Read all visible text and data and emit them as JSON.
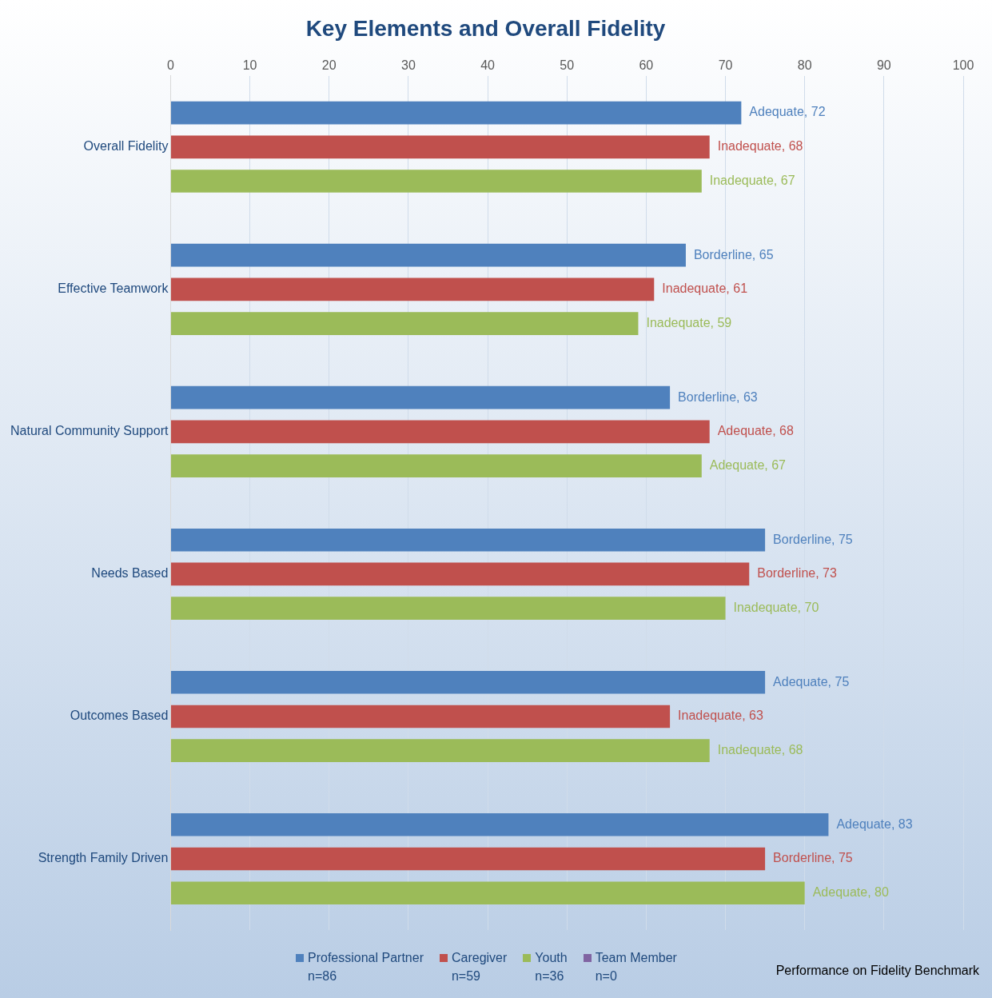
{
  "chart_data": {
    "type": "bar",
    "orientation": "horizontal",
    "title": "Key Elements and Overall Fidelity",
    "categories": [
      "Overall Fidelity",
      "Effective Teamwork",
      "Natural Community Support",
      "Needs Based",
      "Outcomes Based",
      "Strength Family Driven"
    ],
    "series": [
      {
        "name": "Professional Partner\nn=86",
        "color": "#4f81bd",
        "values": [
          72,
          65,
          63,
          75,
          75,
          83
        ],
        "value_labels": [
          "Adequate, 72",
          "Borderline, 65",
          "Borderline, 63",
          "Borderline, 75",
          "Adequate, 75",
          "Adequate, 83"
        ]
      },
      {
        "name": "Caregiver\nn=59",
        "color": "#c0504d",
        "values": [
          68,
          61,
          68,
          73,
          63,
          75
        ],
        "value_labels": [
          "Inadequate, 68",
          "Inadequate, 61",
          "Adequate, 68",
          "Borderline, 73",
          "Inadequate, 63",
          "Borderline, 75"
        ]
      },
      {
        "name": "Youth\nn=36",
        "color": "#9bbb59",
        "values": [
          67,
          59,
          67,
          70,
          68,
          80
        ],
        "value_labels": [
          "Inadequate, 67",
          "Inadequate, 59",
          "Adequate, 67",
          "Inadequate, 70",
          "Inadequate, 68",
          "Adequate, 80"
        ]
      },
      {
        "name": "Team Member\nn=0",
        "color": "#8064a2",
        "values": [
          null,
          null,
          null,
          null,
          null,
          null
        ]
      }
    ],
    "xlim": [
      0,
      100
    ],
    "xticks": [
      0,
      10,
      20,
      30,
      40,
      50,
      60,
      70,
      80,
      90,
      100
    ],
    "grid": "x",
    "legend": "bottom",
    "annotations": [
      "Performance on Fidelity Benchmark"
    ]
  }
}
